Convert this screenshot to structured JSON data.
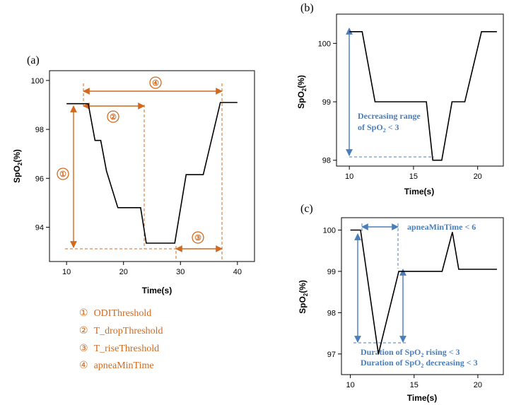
{
  "colors": {
    "orange": "#d2691e",
    "blue": "#4a7ebb",
    "line": "#000000"
  },
  "chart_data": [
    {
      "panel": "(a)",
      "type": "line",
      "xlabel": "Time(s)",
      "ylabel": "SpO",
      "ylabel_sub": "2",
      "ylabel_suffix": "(%)",
      "xlim": [
        7,
        43
      ],
      "ylim": [
        92.6,
        100.4
      ],
      "xticks": [
        10,
        20,
        30,
        40
      ],
      "yticks": [
        94,
        96,
        98,
        100
      ],
      "x": [
        10,
        13.8,
        15,
        16,
        17,
        19,
        23,
        24,
        29,
        31,
        34,
        37,
        40
      ],
      "y": [
        99.05,
        99.05,
        97.55,
        97.55,
        96.3,
        94.8,
        94.8,
        93.35,
        93.35,
        96.15,
        96.15,
        99.1,
        99.1
      ],
      "annotations": [
        {
          "num": "④",
          "label": "apneaMinTime"
        },
        {
          "num": "②",
          "label": "T_dropThreshold"
        },
        {
          "num": "①",
          "label": "ODIThreshold"
        },
        {
          "num": "③",
          "label": "T_riseThreshold"
        }
      ]
    },
    {
      "panel": "(b)",
      "type": "line",
      "xlabel": "Time(s)",
      "ylabel": "SpO",
      "ylabel_sub": "2",
      "ylabel_suffix": "(%)",
      "xlim": [
        9,
        22
      ],
      "ylim": [
        97.9,
        100.5
      ],
      "xticks": [
        10,
        15,
        20
      ],
      "yticks": [
        98,
        99,
        100
      ],
      "x": [
        10,
        11,
        12,
        16,
        16.5,
        17.2,
        18,
        19,
        20.3,
        21.5
      ],
      "y": [
        100.2,
        100.2,
        99,
        99,
        98,
        98,
        99,
        99,
        100.2,
        100.2
      ],
      "annotation": {
        "line1": "Decreasing range",
        "line2a": "of SpO",
        "sub": "2",
        "line2b": " < 3"
      }
    },
    {
      "panel": "(c)",
      "type": "line",
      "xlabel": "Time(s)",
      "ylabel": "SpO",
      "ylabel_sub": "2",
      "ylabel_suffix": "(%)",
      "xlim": [
        9.3,
        22
      ],
      "ylim": [
        96.5,
        100.3
      ],
      "xticks": [
        10,
        15,
        20
      ],
      "yticks": [
        97,
        98,
        99,
        100
      ],
      "x": [
        10,
        10.8,
        12.2,
        13.8,
        17.2,
        18,
        18.5,
        21.5
      ],
      "y": [
        100,
        100,
        97,
        99,
        99,
        99.95,
        99.05,
        99.05
      ],
      "annotations": {
        "top": "apneaMinTime < 6",
        "rising_a": "Duration of SpO",
        "rising_sub": "2",
        "rising_b": " rising < 3",
        "dec_a": "Duration of SpO",
        "dec_sub": "2",
        "dec_b": " decreasing < 3"
      }
    }
  ],
  "legend_items": [
    {
      "num": "①",
      "label": "ODIThreshold"
    },
    {
      "num": "②",
      "label": "T_dropThreshold"
    },
    {
      "num": "③",
      "label": "T_riseThreshold"
    },
    {
      "num": "④",
      "label": "apneaMinTime"
    }
  ]
}
